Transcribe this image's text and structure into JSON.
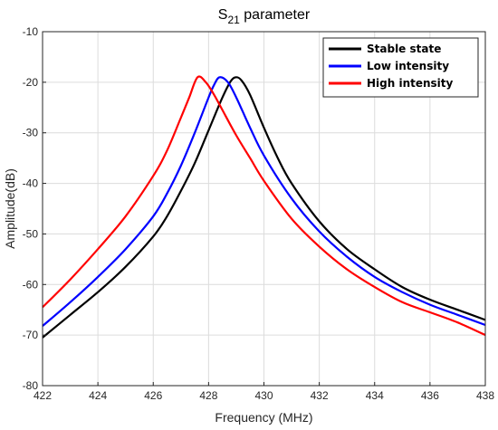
{
  "chart_data": {
    "type": "line",
    "title": "S",
    "title_subscript": "21",
    "title_suffix": " parameter",
    "xlabel": "Frequency (MHz)",
    "ylabel": "Amplitude(dB)",
    "xlim": [
      422,
      438
    ],
    "ylim": [
      -80,
      -10
    ],
    "xticks": [
      422,
      424,
      426,
      428,
      430,
      432,
      434,
      436,
      438
    ],
    "yticks": [
      -80,
      -70,
      -60,
      -50,
      -40,
      -30,
      -20,
      -10
    ],
    "grid": true,
    "legend_position": "top-right",
    "series": [
      {
        "name": "Stable state",
        "color": "#000000",
        "x": [
          422,
          423,
          424,
          425,
          426,
          426.5,
          427,
          427.5,
          428,
          428.5,
          428.8,
          429,
          429.2,
          429.5,
          430,
          430.5,
          431,
          432,
          433,
          434,
          435,
          436,
          437,
          438
        ],
        "y": [
          -70.5,
          -66,
          -61.5,
          -56.5,
          -50.5,
          -46.5,
          -41.5,
          -36,
          -29.5,
          -23,
          -19.8,
          -19,
          -19.7,
          -22.5,
          -29,
          -35,
          -40,
          -47.5,
          -53,
          -57,
          -60.5,
          -63,
          -65,
          -67
        ]
      },
      {
        "name": "Low intensity",
        "color": "#0000ff",
        "x": [
          422,
          423,
          424,
          425,
          426,
          426.5,
          427,
          427.5,
          428,
          428.2,
          428.4,
          428.7,
          429,
          429.5,
          430,
          431,
          432,
          433,
          434,
          435,
          436,
          437,
          438
        ],
        "y": [
          -68.2,
          -63.5,
          -58.5,
          -53,
          -46.5,
          -42,
          -36.5,
          -30,
          -23,
          -20.5,
          -19,
          -20,
          -23,
          -29,
          -34.5,
          -43,
          -49.5,
          -54.5,
          -58.5,
          -61.5,
          -64,
          -66,
          -68
        ]
      },
      {
        "name": "High intensity",
        "color": "#ff0000",
        "x": [
          422,
          423,
          424,
          425,
          426,
          426.5,
          427,
          427.3,
          427.6,
          427.9,
          428.2,
          428.5,
          429,
          429.5,
          430,
          431,
          432,
          433,
          434,
          435,
          436,
          437,
          438
        ],
        "y": [
          -64.5,
          -59,
          -53,
          -46.5,
          -38.5,
          -33.5,
          -27,
          -23,
          -19,
          -20,
          -22.5,
          -25.5,
          -30.5,
          -35,
          -39.5,
          -47,
          -52.5,
          -57,
          -60.5,
          -63.5,
          -65.5,
          -67.5,
          -70
        ]
      }
    ]
  }
}
